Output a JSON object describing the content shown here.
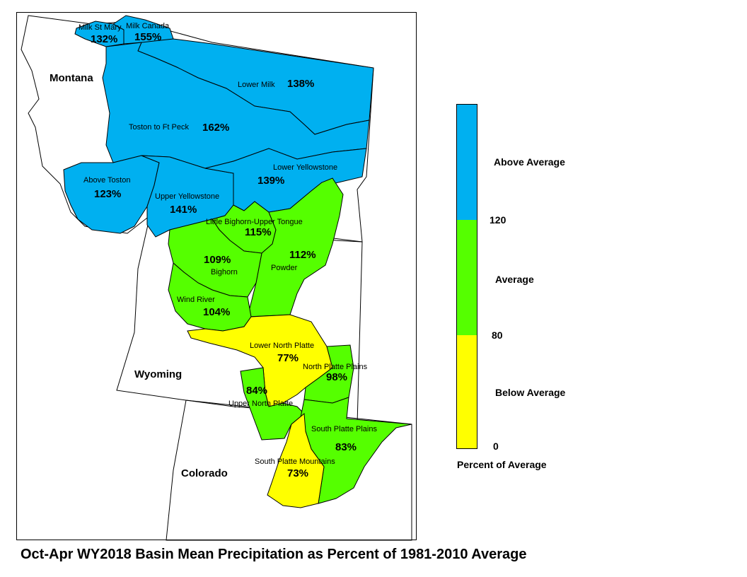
{
  "title": "Oct-Apr WY2018 Basin Mean Precipitation as Percent of 1981-2010 Average",
  "states": {
    "montana": "Montana",
    "wyoming": "Wyoming",
    "colorado": "Colorado"
  },
  "colors": {
    "above": "#00b0f0",
    "average": "#55ff00",
    "below": "#ffff00",
    "border": "#000000"
  },
  "basins": [
    {
      "name": "Milk St Mary",
      "percent": "132%",
      "category": "above"
    },
    {
      "name": "Milk Canada",
      "percent": "155%",
      "category": "above"
    },
    {
      "name": "Lower Milk",
      "percent": "138%",
      "category": "above"
    },
    {
      "name": "Toston to Ft Peck",
      "percent": "162%",
      "category": "above"
    },
    {
      "name": "Above Toston",
      "percent": "123%",
      "category": "above"
    },
    {
      "name": "Upper Yellowstone",
      "percent": "141%",
      "category": "above"
    },
    {
      "name": "Lower Yellowstone",
      "percent": "139%",
      "category": "above"
    },
    {
      "name": "Little Bighorn-Upper Tongue",
      "percent": "115%",
      "category": "average"
    },
    {
      "name": "Bighorn",
      "percent": "109%",
      "category": "average"
    },
    {
      "name": "Powder",
      "percent": "112%",
      "category": "average"
    },
    {
      "name": "Wind River",
      "percent": "104%",
      "category": "average"
    },
    {
      "name": "Lower North Platte",
      "percent": "77%",
      "category": "below"
    },
    {
      "name": "North Platte Plains",
      "percent": "98%",
      "category": "average"
    },
    {
      "name": "Upper North Platte",
      "percent": "84%",
      "category": "average"
    },
    {
      "name": "South Platte Plains",
      "percent": "83%",
      "category": "average"
    },
    {
      "name": "South Platte Mountains",
      "percent": "73%",
      "category": "below"
    }
  ],
  "legend": {
    "title": "Percent of Average",
    "above_label": "Above Average",
    "average_label": "Average",
    "below_label": "Below Average",
    "tick_120": "120",
    "tick_80": "80",
    "tick_0": "0"
  }
}
